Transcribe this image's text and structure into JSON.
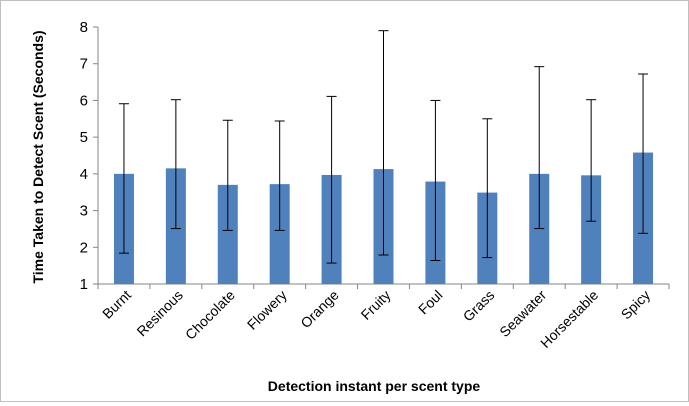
{
  "chart_data": {
    "type": "bar",
    "categories": [
      "Burnt",
      "Resinous",
      "Chocolate",
      "Flowery",
      "Orange",
      "Fruity",
      "Foul",
      "Grass",
      "Seawater",
      "Horsestable",
      "Spicy"
    ],
    "values": [
      4.0,
      4.15,
      3.7,
      3.72,
      3.97,
      4.13,
      3.79,
      3.49,
      4.0,
      3.96,
      4.58
    ],
    "error_low": [
      1.84,
      2.51,
      2.46,
      2.46,
      1.57,
      1.79,
      1.64,
      1.72,
      2.51,
      2.71,
      2.38
    ],
    "error_high": [
      5.91,
      6.02,
      5.46,
      5.44,
      6.11,
      7.9,
      6.0,
      5.5,
      6.92,
      6.02,
      6.72
    ],
    "xlabel": "Detection instant per scent type",
    "ylabel": "Time Taken to Detect Scent (Seconds)",
    "ylim": [
      1,
      8
    ],
    "yticks": [
      1,
      2,
      3,
      4,
      5,
      6,
      7,
      8
    ],
    "grid": false,
    "legend": "none",
    "bar_color": "#4f81bd",
    "error_bar_color": "#000000"
  }
}
